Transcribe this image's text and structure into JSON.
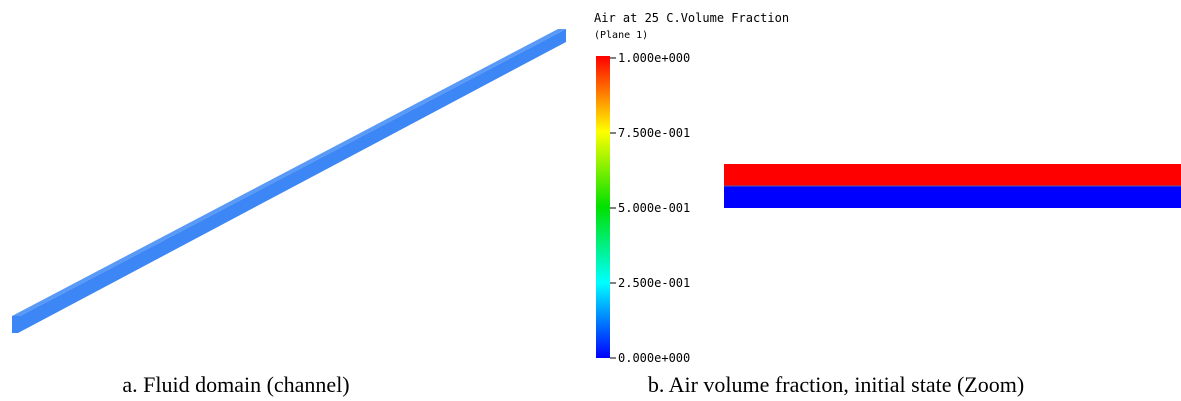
{
  "panel_a": {
    "caption": "a. Fluid domain (channel)"
  },
  "panel_b": {
    "legend": {
      "title": "Air at 25 C.Volume Fraction",
      "subtitle": "(Plane 1)",
      "ticks": [
        "1.000e+000",
        "7.500e-001",
        "5.000e-001",
        "2.500e-001",
        "0.000e+000"
      ]
    },
    "caption": "b. Air volume fraction, initial state (Zoom)"
  }
}
